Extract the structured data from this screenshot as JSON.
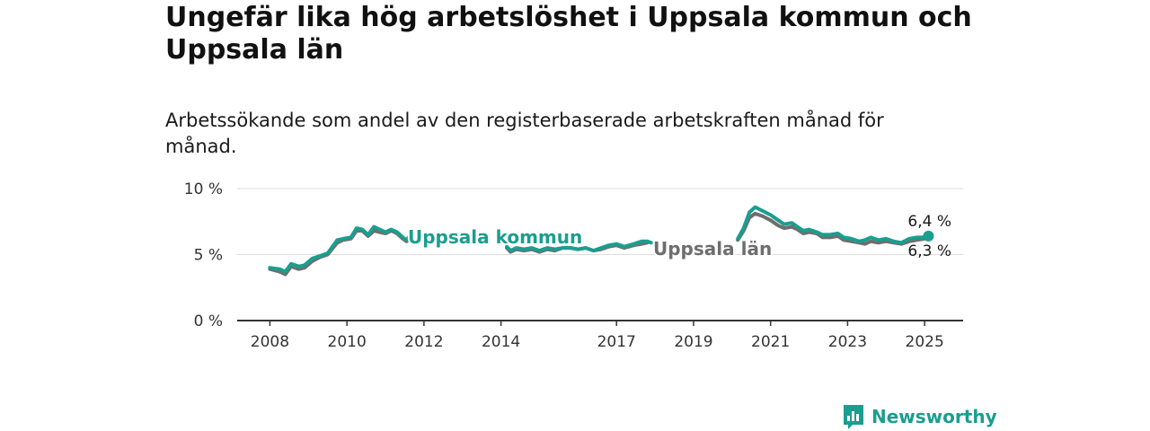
{
  "title": "Ungefär lika hög arbetslöshet i Uppsala kommun och Uppsala län",
  "subtitle": "Arbetssökande som andel av den registerbaserade arbetskraften månad för månad.",
  "brand": "Newsworthy",
  "colors": {
    "kommun": "#1a9e8f",
    "lan": "#6e6e6e",
    "grid": "#dddddd",
    "axis": "#333333",
    "brand": "#1a9e8f"
  },
  "chart_data": {
    "type": "line",
    "y_ticks": [
      {
        "value": 0,
        "label": "0 %"
      },
      {
        "value": 5,
        "label": "5 %"
      },
      {
        "value": 10,
        "label": "10 %"
      }
    ],
    "x_ticks": [
      {
        "value": 2008,
        "label": "2008"
      },
      {
        "value": 2010,
        "label": "2010"
      },
      {
        "value": 2012,
        "label": "2012"
      },
      {
        "value": 2014,
        "label": "2014"
      },
      {
        "value": 2017,
        "label": "2017"
      },
      {
        "value": 2019,
        "label": "2019"
      },
      {
        "value": 2021,
        "label": "2021"
      },
      {
        "value": 2023,
        "label": "2023"
      },
      {
        "value": 2025,
        "label": "2025"
      }
    ],
    "xlim": [
      2007.15,
      2026.0
    ],
    "ylim": [
      0,
      10
    ],
    "grid": true,
    "series": [
      {
        "name": "Uppsala län",
        "color": "#6e6e6e",
        "end_label": "6,3 %",
        "segments": [
          [
            [
              2008.0,
              3.9
            ],
            [
              2008.25,
              3.7
            ],
            [
              2008.4,
              3.5
            ],
            [
              2008.55,
              4.1
            ],
            [
              2008.75,
              3.9
            ],
            [
              2008.9,
              4.0
            ],
            [
              2009.1,
              4.5
            ],
            [
              2009.3,
              4.8
            ],
            [
              2009.5,
              5.0
            ],
            [
              2009.75,
              5.9
            ],
            [
              2009.9,
              6.1
            ],
            [
              2010.1,
              6.2
            ],
            [
              2010.25,
              6.8
            ],
            [
              2010.4,
              6.8
            ],
            [
              2010.55,
              6.4
            ],
            [
              2010.7,
              6.8
            ],
            [
              2010.85,
              6.7
            ],
            [
              2011.0,
              6.6
            ],
            [
              2011.15,
              6.8
            ],
            [
              2011.3,
              6.6
            ],
            [
              2011.45,
              6.2
            ],
            [
              2011.55,
              6.0
            ],
            [
              2011.65,
              6.3
            ]
          ],
          [
            [
              2014.15,
              5.5
            ],
            [
              2014.25,
              5.2
            ],
            [
              2014.4,
              5.4
            ],
            [
              2014.6,
              5.3
            ],
            [
              2014.8,
              5.4
            ],
            [
              2015.0,
              5.2
            ],
            [
              2015.2,
              5.4
            ],
            [
              2015.4,
              5.3
            ],
            [
              2015.6,
              5.5
            ],
            [
              2015.8,
              5.5
            ],
            [
              2016.0,
              5.4
            ],
            [
              2016.2,
              5.5
            ],
            [
              2016.4,
              5.3
            ],
            [
              2016.6,
              5.4
            ],
            [
              2016.8,
              5.6
            ],
            [
              2017.0,
              5.7
            ],
            [
              2017.2,
              5.5
            ],
            [
              2017.45,
              5.7
            ],
            [
              2017.65,
              5.8
            ],
            [
              2017.8,
              5.9
            ]
          ],
          [
            [
              2020.15,
              6.1
            ],
            [
              2020.3,
              6.8
            ],
            [
              2020.45,
              7.8
            ],
            [
              2020.6,
              8.1
            ],
            [
              2020.8,
              7.9
            ],
            [
              2021.0,
              7.6
            ],
            [
              2021.2,
              7.2
            ],
            [
              2021.35,
              7.0
            ],
            [
              2021.55,
              7.1
            ],
            [
              2021.7,
              6.9
            ],
            [
              2021.85,
              6.6
            ],
            [
              2022.0,
              6.7
            ],
            [
              2022.2,
              6.6
            ],
            [
              2022.35,
              6.3
            ],
            [
              2022.55,
              6.3
            ],
            [
              2022.75,
              6.4
            ],
            [
              2022.9,
              6.1
            ],
            [
              2023.1,
              6.0
            ],
            [
              2023.3,
              5.9
            ],
            [
              2023.45,
              5.8
            ],
            [
              2023.6,
              6.0
            ],
            [
              2023.8,
              5.9
            ],
            [
              2024.0,
              6.0
            ],
            [
              2024.2,
              5.9
            ],
            [
              2024.4,
              5.8
            ],
            [
              2024.6,
              6.0
            ],
            [
              2024.8,
              6.1
            ],
            [
              2025.0,
              6.2
            ],
            [
              2025.1,
              6.3
            ]
          ]
        ]
      },
      {
        "name": "Uppsala kommun",
        "color": "#1a9e8f",
        "end_label": "6,4 %",
        "segments": [
          [
            [
              2008.0,
              4.0
            ],
            [
              2008.25,
              3.9
            ],
            [
              2008.4,
              3.7
            ],
            [
              2008.55,
              4.3
            ],
            [
              2008.75,
              4.1
            ],
            [
              2008.9,
              4.2
            ],
            [
              2009.1,
              4.7
            ],
            [
              2009.3,
              4.9
            ],
            [
              2009.5,
              5.1
            ],
            [
              2009.75,
              6.1
            ],
            [
              2009.9,
              6.2
            ],
            [
              2010.1,
              6.3
            ],
            [
              2010.25,
              7.0
            ],
            [
              2010.4,
              6.9
            ],
            [
              2010.55,
              6.5
            ],
            [
              2010.7,
              7.1
            ],
            [
              2010.85,
              6.9
            ],
            [
              2011.0,
              6.7
            ],
            [
              2011.15,
              6.9
            ],
            [
              2011.3,
              6.7
            ],
            [
              2011.45,
              6.3
            ],
            [
              2011.55,
              6.1
            ],
            [
              2011.65,
              6.5
            ]
          ],
          [
            [
              2014.15,
              5.6
            ],
            [
              2014.25,
              5.3
            ],
            [
              2014.4,
              5.5
            ],
            [
              2014.6,
              5.4
            ],
            [
              2014.8,
              5.5
            ],
            [
              2015.0,
              5.3
            ],
            [
              2015.2,
              5.5
            ],
            [
              2015.4,
              5.4
            ],
            [
              2015.6,
              5.5
            ],
            [
              2015.8,
              5.5
            ],
            [
              2016.0,
              5.4
            ],
            [
              2016.2,
              5.5
            ],
            [
              2016.4,
              5.3
            ],
            [
              2016.6,
              5.5
            ],
            [
              2016.8,
              5.7
            ],
            [
              2017.0,
              5.8
            ],
            [
              2017.2,
              5.6
            ],
            [
              2017.45,
              5.8
            ],
            [
              2017.65,
              6.0
            ],
            [
              2017.8,
              6.0
            ],
            [
              2017.9,
              5.9
            ]
          ],
          [
            [
              2020.15,
              6.2
            ],
            [
              2020.3,
              7.0
            ],
            [
              2020.45,
              8.2
            ],
            [
              2020.6,
              8.6
            ],
            [
              2020.8,
              8.3
            ],
            [
              2021.0,
              8.0
            ],
            [
              2021.2,
              7.6
            ],
            [
              2021.35,
              7.3
            ],
            [
              2021.55,
              7.4
            ],
            [
              2021.7,
              7.1
            ],
            [
              2021.85,
              6.8
            ],
            [
              2022.0,
              6.9
            ],
            [
              2022.2,
              6.7
            ],
            [
              2022.35,
              6.5
            ],
            [
              2022.55,
              6.5
            ],
            [
              2022.75,
              6.6
            ],
            [
              2022.9,
              6.3
            ],
            [
              2023.1,
              6.2
            ],
            [
              2023.3,
              6.0
            ],
            [
              2023.45,
              6.1
            ],
            [
              2023.6,
              6.3
            ],
            [
              2023.8,
              6.1
            ],
            [
              2024.0,
              6.2
            ],
            [
              2024.2,
              6.0
            ],
            [
              2024.4,
              5.9
            ],
            [
              2024.6,
              6.2
            ],
            [
              2024.8,
              6.3
            ],
            [
              2025.0,
              6.3
            ],
            [
              2025.1,
              6.4
            ]
          ]
        ]
      }
    ]
  }
}
